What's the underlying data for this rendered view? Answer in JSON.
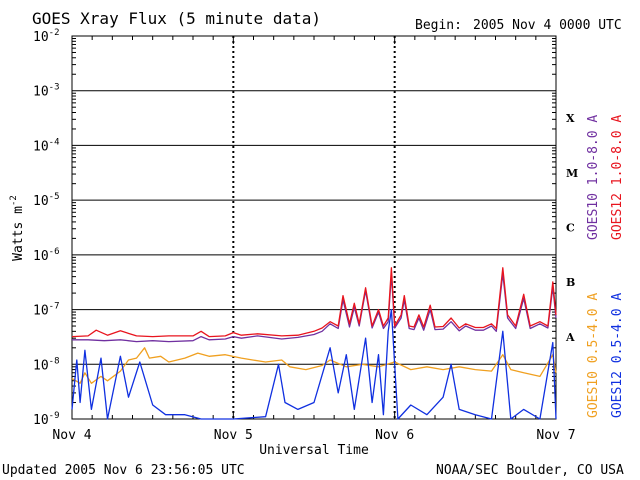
{
  "header": {
    "title": "GOES Xray Flux (5 minute data)",
    "begin_label": "Begin:",
    "begin_value": "2005 Nov 4 0000 UTC"
  },
  "footer": {
    "updated": "Updated 2005 Nov  6 23:56:05 UTC",
    "source": "NOAA/SEC Boulder, CO USA"
  },
  "right_labels": {
    "goes10_long": "GOES10 1.0-8.0 A",
    "goes12_long": "GOES12 1.0-8.0 A",
    "goes10_short": "GOES10 0.5-4.0 A",
    "goes12_short": "GOES12 0.5-4.0 A"
  },
  "flare_classes": [
    "X",
    "M",
    "C",
    "B",
    "A"
  ],
  "colors": {
    "goes10_long": "#7030a0",
    "goes12_long": "#e8141e",
    "goes10_short": "#f0a020",
    "goes12_short": "#1030e0",
    "grid": "#000000",
    "background": "#ffffff"
  },
  "chart_data": {
    "type": "line",
    "title": "GOES Xray Flux (5 minute data)",
    "xlabel": "Universal Time",
    "ylabel": "Watts m",
    "ylabel_sup": "-2",
    "y_scale": "log",
    "ylim": [
      1e-09,
      0.01
    ],
    "xlim_days": [
      0,
      3
    ],
    "x_tick_labels": [
      "Nov 4",
      "Nov 5",
      "Nov 6",
      "Nov 7"
    ],
    "y_tick_labels": [
      {
        "base": "10",
        "exp": "-2"
      },
      {
        "base": "10",
        "exp": "-3"
      },
      {
        "base": "10",
        "exp": "-4"
      },
      {
        "base": "10",
        "exp": "-5"
      },
      {
        "base": "10",
        "exp": "-6"
      },
      {
        "base": "10",
        "exp": "-7"
      },
      {
        "base": "10",
        "exp": "-8"
      },
      {
        "base": "10",
        "exp": "-9"
      }
    ],
    "series": [
      {
        "name": "GOES10 1.0-8.0 A",
        "color": "#7030a0",
        "points": [
          [
            0.0,
            2.8e-08
          ],
          [
            0.1,
            2.8e-08
          ],
          [
            0.2,
            2.7e-08
          ],
          [
            0.3,
            2.8e-08
          ],
          [
            0.4,
            2.6e-08
          ],
          [
            0.5,
            2.7e-08
          ],
          [
            0.6,
            2.6e-08
          ],
          [
            0.75,
            2.7e-08
          ],
          [
            0.8,
            3.2e-08
          ],
          [
            0.85,
            2.8e-08
          ],
          [
            0.95,
            2.9e-08
          ],
          [
            1.0,
            3.2e-08
          ],
          [
            1.05,
            3e-08
          ],
          [
            1.15,
            3.3e-08
          ],
          [
            1.3,
            2.9e-08
          ],
          [
            1.4,
            3.1e-08
          ],
          [
            1.5,
            3.5e-08
          ],
          [
            1.55,
            4e-08
          ],
          [
            1.6,
            5.5e-08
          ],
          [
            1.65,
            4.5e-08
          ],
          [
            1.68,
            1.5e-07
          ],
          [
            1.72,
            4.8e-08
          ],
          [
            1.75,
            1.1e-07
          ],
          [
            1.78,
            5e-08
          ],
          [
            1.82,
            2.2e-07
          ],
          [
            1.86,
            4.6e-08
          ],
          [
            1.9,
            9e-08
          ],
          [
            1.93,
            4.5e-08
          ],
          [
            1.96,
            6e-08
          ],
          [
            1.98,
            4.4e-07
          ],
          [
            2.0,
            4.6e-08
          ],
          [
            2.04,
            7e-08
          ],
          [
            2.06,
            1.5e-07
          ],
          [
            2.09,
            4.5e-08
          ],
          [
            2.12,
            4.3e-08
          ],
          [
            2.15,
            7e-08
          ],
          [
            2.18,
            4.2e-08
          ],
          [
            2.22,
            1e-07
          ],
          [
            2.25,
            4.3e-08
          ],
          [
            2.3,
            4.4e-08
          ],
          [
            2.35,
            6e-08
          ],
          [
            2.4,
            4.1e-08
          ],
          [
            2.44,
            5e-08
          ],
          [
            2.5,
            4.2e-08
          ],
          [
            2.55,
            4.2e-08
          ],
          [
            2.6,
            5e-08
          ],
          [
            2.63,
            4e-08
          ],
          [
            2.67,
            4.5e-07
          ],
          [
            2.7,
            7e-08
          ],
          [
            2.75,
            4.5e-08
          ],
          [
            2.8,
            1.6e-07
          ],
          [
            2.84,
            4.5e-08
          ],
          [
            2.9,
            5.5e-08
          ],
          [
            2.95,
            4.6e-08
          ],
          [
            2.98,
            2.6e-07
          ],
          [
            3.0,
            7e-08
          ]
        ]
      },
      {
        "name": "GOES12 1.0-8.0 A",
        "color": "#e8141e",
        "points": [
          [
            0.0,
            3.2e-08
          ],
          [
            0.1,
            3.3e-08
          ],
          [
            0.15,
            4.2e-08
          ],
          [
            0.22,
            3.4e-08
          ],
          [
            0.3,
            4.1e-08
          ],
          [
            0.4,
            3.3e-08
          ],
          [
            0.5,
            3.2e-08
          ],
          [
            0.6,
            3.3e-08
          ],
          [
            0.75,
            3.3e-08
          ],
          [
            0.8,
            4e-08
          ],
          [
            0.85,
            3.2e-08
          ],
          [
            0.95,
            3.3e-08
          ],
          [
            1.0,
            3.8e-08
          ],
          [
            1.05,
            3.4e-08
          ],
          [
            1.15,
            3.6e-08
          ],
          [
            1.3,
            3.3e-08
          ],
          [
            1.4,
            3.4e-08
          ],
          [
            1.5,
            4e-08
          ],
          [
            1.55,
            4.6e-08
          ],
          [
            1.6,
            6e-08
          ],
          [
            1.65,
            5e-08
          ],
          [
            1.68,
            1.8e-07
          ],
          [
            1.72,
            5.5e-08
          ],
          [
            1.75,
            1.3e-07
          ],
          [
            1.78,
            5.5e-08
          ],
          [
            1.82,
            2.5e-07
          ],
          [
            1.86,
            5e-08
          ],
          [
            1.9,
            1e-07
          ],
          [
            1.93,
            5e-08
          ],
          [
            1.96,
            7e-08
          ],
          [
            1.98,
            5.8e-07
          ],
          [
            2.0,
            5e-08
          ],
          [
            2.04,
            8e-08
          ],
          [
            2.06,
            1.8e-07
          ],
          [
            2.09,
            5e-08
          ],
          [
            2.12,
            4.8e-08
          ],
          [
            2.15,
            8e-08
          ],
          [
            2.18,
            4.8e-08
          ],
          [
            2.22,
            1.2e-07
          ],
          [
            2.25,
            4.8e-08
          ],
          [
            2.3,
            4.9e-08
          ],
          [
            2.35,
            7e-08
          ],
          [
            2.4,
            4.6e-08
          ],
          [
            2.44,
            5.5e-08
          ],
          [
            2.5,
            4.7e-08
          ],
          [
            2.55,
            4.7e-08
          ],
          [
            2.6,
            5.5e-08
          ],
          [
            2.63,
            4.5e-08
          ],
          [
            2.67,
            5.8e-07
          ],
          [
            2.7,
            8e-08
          ],
          [
            2.75,
            5e-08
          ],
          [
            2.8,
            1.9e-07
          ],
          [
            2.84,
            5e-08
          ],
          [
            2.9,
            6e-08
          ],
          [
            2.95,
            5e-08
          ],
          [
            2.98,
            3.2e-07
          ],
          [
            3.0,
            8e-08
          ]
        ]
      },
      {
        "name": "GOES10 0.5-4.0 A",
        "color": "#f0a020",
        "points": [
          [
            0.0,
            5.5e-09
          ],
          [
            0.05,
            4.5e-09
          ],
          [
            0.08,
            7e-09
          ],
          [
            0.12,
            4.5e-09
          ],
          [
            0.18,
            6e-09
          ],
          [
            0.22,
            5e-09
          ],
          [
            0.3,
            7.5e-09
          ],
          [
            0.35,
            1.2e-08
          ],
          [
            0.4,
            1.3e-08
          ],
          [
            0.45,
            2e-08
          ],
          [
            0.48,
            1.3e-08
          ],
          [
            0.55,
            1.4e-08
          ],
          [
            0.6,
            1.1e-08
          ],
          [
            0.7,
            1.3e-08
          ],
          [
            0.78,
            1.6e-08
          ],
          [
            0.85,
            1.4e-08
          ],
          [
            0.95,
            1.5e-08
          ],
          [
            1.05,
            1.3e-08
          ],
          [
            1.12,
            1.2e-08
          ],
          [
            1.2,
            1.1e-08
          ],
          [
            1.3,
            1.2e-08
          ],
          [
            1.35,
            9e-09
          ],
          [
            1.45,
            8e-09
          ],
          [
            1.55,
            9.5e-09
          ],
          [
            1.6,
            1.2e-08
          ],
          [
            1.7,
            9e-09
          ],
          [
            1.8,
            1e-08
          ],
          [
            1.9,
            9e-09
          ],
          [
            2.0,
            1.1e-08
          ],
          [
            2.1,
            8e-09
          ],
          [
            2.2,
            9e-09
          ],
          [
            2.3,
            8e-09
          ],
          [
            2.4,
            9e-09
          ],
          [
            2.5,
            8e-09
          ],
          [
            2.6,
            7.5e-09
          ],
          [
            2.67,
            1.5e-08
          ],
          [
            2.72,
            8e-09
          ],
          [
            2.8,
            7e-09
          ],
          [
            2.9,
            6e-09
          ],
          [
            2.98,
            1.5e-08
          ],
          [
            3.0,
            7e-09
          ]
        ]
      },
      {
        "name": "GOES12 0.5-4.0 A",
        "color": "#1030e0",
        "points": [
          [
            0.0,
            1.5e-09
          ],
          [
            0.03,
            1.2e-08
          ],
          [
            0.05,
            2e-09
          ],
          [
            0.08,
            1.8e-08
          ],
          [
            0.12,
            1.5e-09
          ],
          [
            0.18,
            1.3e-08
          ],
          [
            0.22,
            1e-09
          ],
          [
            0.3,
            1.4e-08
          ],
          [
            0.35,
            2.5e-09
          ],
          [
            0.42,
            1.1e-08
          ],
          [
            0.5,
            1.8e-09
          ],
          [
            0.58,
            1.2e-09
          ],
          [
            0.7,
            1.2e-09
          ],
          [
            0.8,
            1e-09
          ],
          [
            1.0,
            1e-09
          ],
          [
            1.2,
            1.1e-09
          ],
          [
            1.28,
            1e-08
          ],
          [
            1.32,
            2e-09
          ],
          [
            1.4,
            1.5e-09
          ],
          [
            1.5,
            2e-09
          ],
          [
            1.6,
            2e-08
          ],
          [
            1.65,
            3e-09
          ],
          [
            1.7,
            1.5e-08
          ],
          [
            1.75,
            1.5e-09
          ],
          [
            1.82,
            3e-08
          ],
          [
            1.86,
            2e-09
          ],
          [
            1.9,
            1.5e-08
          ],
          [
            1.93,
            1.2e-09
          ],
          [
            1.96,
            4e-08
          ],
          [
            1.98,
            1e-07
          ],
          [
            2.02,
            1e-09
          ],
          [
            2.1,
            1.8e-09
          ],
          [
            2.2,
            1.2e-09
          ],
          [
            2.3,
            2.5e-09
          ],
          [
            2.35,
            1e-08
          ],
          [
            2.4,
            1.5e-09
          ],
          [
            2.5,
            1.2e-09
          ],
          [
            2.6,
            1e-09
          ],
          [
            2.67,
            4e-08
          ],
          [
            2.72,
            1e-09
          ],
          [
            2.8,
            1.5e-09
          ],
          [
            2.9,
            1e-09
          ],
          [
            2.98,
            2.5e-08
          ],
          [
            3.0,
            1e-09
          ]
        ]
      }
    ],
    "grid": true
  }
}
